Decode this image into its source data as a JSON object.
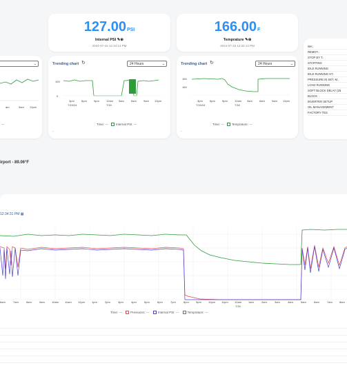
{
  "metrics": [
    {
      "value": "127.00",
      "unit": "PSI",
      "label": "Internal PSI",
      "timestamp": "2024-07-16 12:34:14 PM"
    },
    {
      "value": "166.00",
      "unit": "F",
      "label": "Temprature",
      "timestamp": "2024-07-16 12:34:14 PM"
    }
  ],
  "left_card": {
    "ticks": [
      "am",
      "9am",
      "12pm"
    ],
    "legend_dash": "---"
  },
  "trend1": {
    "title": "Trending chart",
    "range": "24 Hours",
    "y_ticks": [
      "100",
      "0"
    ],
    "x_ticks": [
      "3pm",
      "6pm",
      "9pm",
      "12am",
      "3am",
      "6am",
      "9am",
      "12pm"
    ],
    "x_sub": [
      "7/15/24",
      "7/16"
    ],
    "legend": {
      "time": "Time: ---",
      "series": "Internal PSI: ---"
    },
    "dot": "-"
  },
  "trend2": {
    "title": "Trending chart",
    "range": "24 Hours",
    "y_ticks": [
      "169",
      "160"
    ],
    "x_ticks": [
      "3pm",
      "6pm",
      "9pm",
      "12am",
      "3am",
      "6am",
      "9am",
      "12pm"
    ],
    "x_sub": [
      "7/15/24",
      "7/16"
    ],
    "legend": {
      "time": "Time: ---",
      "series": "Temprature: ---"
    },
    "dot": "-"
  },
  "state_list": [
    "WA:",
    "REMOT..",
    "STOP BY T..",
    "STARTING",
    "IDLE RUNNING",
    "IDLE RUNNING ST..",
    "PRESSURE IN SET, M..",
    "LOAD RUNNING",
    "SOFT BLOCK DELAY (25",
    "BLOCK",
    "INVERTER SETUP",
    "OIL MANAGEMENT",
    "FACTORY TES"
  ],
  "weather": "irport - 89.06°F",
  "big_chart": {
    "date": "12:34:31 PM",
    "x_ticks": [
      "6am",
      "7am",
      "8am",
      "9am",
      "10am",
      "11am",
      "12pm",
      "1pm",
      "2pm",
      "3pm",
      "4pm",
      "5pm",
      "6pm",
      "7pm",
      "8pm",
      "9pm",
      "10pm",
      "11pm",
      "12am",
      "1am",
      "2am",
      "3am",
      "4am",
      "5am",
      "6am",
      "7am",
      "8am"
    ],
    "x_sub": "7/16",
    "legend": {
      "time": "Time: ---",
      "s1": "Pressure1: ---",
      "s2": "Internal PSI: ---",
      "s3": "Temprature: ---"
    },
    "colors": {
      "pressure1": "#e0474c",
      "internal_psi": "#4b3fd1",
      "temperature": "#2e9c3a"
    }
  }
}
